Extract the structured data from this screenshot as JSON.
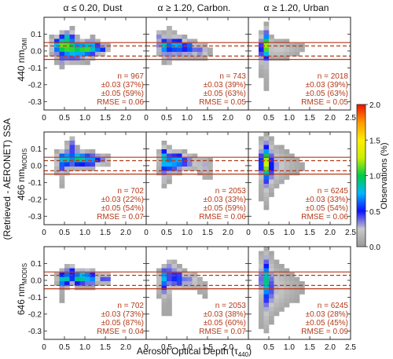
{
  "figure": {
    "col_titles": [
      "α ≤ 0.20, Dust",
      "α ≥ 1.20, Carbon.",
      "α ≥ 1.20, Urban"
    ],
    "row_labels": [
      {
        "main": "440 nm",
        "sub": "OMI"
      },
      {
        "main": "466 nm",
        "sub": "MODIS"
      },
      {
        "main": "646 nm",
        "sub": "MODIS"
      }
    ],
    "shared_ylabel": "(Retrieved - AERONET) SSA",
    "shared_xlabel": "Aerosol Optical Depth (τ",
    "shared_xlabel_sub": "440",
    "shared_xlabel_tail": ")",
    "colorbar_label": "Observations (%)",
    "colorbar_ticks": [
      "0.0",
      "0.5",
      "1.0",
      "1.5",
      "2.0"
    ],
    "colorbar_range": [
      0,
      2
    ],
    "colorbar_colors": [
      "#9a9a9a",
      "#c8c8c8",
      "#1010ff",
      "#00b7ff",
      "#00cc44",
      "#ccee00",
      "#ffee00",
      "#ff9900",
      "#ee1100"
    ],
    "reference_line_color": "#b33a1a",
    "stats_color": "#b33a1a",
    "y_ticks": [
      "-0.3",
      "-0.2",
      "-0.1",
      "0.0",
      "0.1"
    ],
    "x_ticks_cols12": [
      "0",
      "0.5",
      "1.0",
      "1.5",
      "2.0"
    ],
    "x_ticks_col3": [
      "0",
      "0.5",
      "1.0",
      "1.5",
      "2.0",
      "2.5"
    ]
  },
  "chart_data": [
    {
      "type": "heatmap",
      "row": 0,
      "col": 0,
      "xlim": [
        0,
        2.5
      ],
      "ylim": [
        -0.35,
        0.2
      ],
      "reference_lines": {
        "solid": [
          0.05,
          -0.05
        ],
        "dashed": [
          0.03,
          -0.03
        ]
      },
      "stats": [
        "n =   967",
        "±0.03 (37%)",
        "±0.05 (59%)",
        "RMSE = 0.06"
      ],
      "density": [
        [
          0.4,
          0.03,
          0.13,
          0.035,
          0.95
        ],
        [
          0.65,
          0.02,
          0.13,
          0.035,
          0.85
        ],
        [
          0.55,
          0.085,
          0.07,
          0.02,
          0.6
        ],
        [
          0.95,
          0.01,
          0.13,
          0.025,
          0.75
        ],
        [
          1.15,
          0.02,
          0.12,
          0.03,
          0.7
        ],
        [
          1.4,
          0.01,
          0.1,
          0.02,
          0.55
        ],
        [
          0.45,
          -0.06,
          0.08,
          0.02,
          0.3
        ],
        [
          0.8,
          -0.03,
          0.2,
          0.03,
          0.3
        ],
        [
          0.7,
          0.09,
          0.05,
          0.03,
          0.2
        ]
      ]
    },
    {
      "type": "heatmap",
      "row": 0,
      "col": 1,
      "xlim": [
        0,
        2.5
      ],
      "ylim": [
        -0.35,
        0.2
      ],
      "reference_lines": {
        "solid": [
          0.05,
          -0.05
        ],
        "dashed": [
          0.03,
          -0.03
        ]
      },
      "stats": [
        "n =   743",
        "±0.03 (39%)",
        "±0.05 (63%)",
        "RMSE = 0.05"
      ],
      "density": [
        [
          0.45,
          0.03,
          0.1,
          0.03,
          0.8
        ],
        [
          0.75,
          0.04,
          0.1,
          0.03,
          0.7
        ],
        [
          1.05,
          0.03,
          0.08,
          0.025,
          0.5
        ],
        [
          0.35,
          0.09,
          0.06,
          0.02,
          0.35
        ],
        [
          0.9,
          0.0,
          0.3,
          0.03,
          0.3
        ],
        [
          1.35,
          0.0,
          0.12,
          0.025,
          0.3
        ],
        [
          0.55,
          -0.05,
          0.08,
          0.02,
          0.25
        ],
        [
          0.6,
          0.12,
          0.06,
          0.02,
          0.2
        ]
      ]
    },
    {
      "type": "heatmap",
      "row": 0,
      "col": 2,
      "xlim": [
        0,
        2.5
      ],
      "ylim": [
        -0.35,
        0.2
      ],
      "reference_lines": {
        "solid": [
          0.05,
          -0.05
        ],
        "dashed": [
          0.03,
          -0.03
        ]
      },
      "stats": [
        "n =  2018",
        "±0.03 (39%)",
        "±0.05 (63%)",
        "RMSE = 0.05"
      ],
      "density": [
        [
          0.38,
          0.01,
          0.045,
          0.05,
          1.2
        ],
        [
          0.45,
          0.04,
          0.06,
          0.04,
          0.6
        ],
        [
          0.7,
          0.01,
          0.2,
          0.04,
          0.22
        ],
        [
          1.1,
          0.01,
          0.25,
          0.03,
          0.12
        ],
        [
          0.38,
          -0.1,
          0.05,
          0.07,
          0.2
        ],
        [
          0.4,
          0.1,
          0.05,
          0.04,
          0.25
        ],
        [
          0.4,
          -0.22,
          0.04,
          0.05,
          0.08
        ]
      ]
    },
    {
      "type": "heatmap",
      "row": 1,
      "col": 0,
      "xlim": [
        0,
        2.5
      ],
      "ylim": [
        -0.35,
        0.2
      ],
      "reference_lines": {
        "solid": [
          0.05,
          -0.05
        ],
        "dashed": [
          0.03,
          -0.03
        ]
      },
      "stats": [
        "n =   702",
        "±0.03 (22%)",
        "±0.05 (54%)",
        "RMSE = 0.07"
      ],
      "density": [
        [
          0.5,
          0.04,
          0.12,
          0.03,
          0.85
        ],
        [
          0.85,
          0.04,
          0.13,
          0.03,
          0.95
        ],
        [
          1.15,
          0.03,
          0.12,
          0.025,
          0.6
        ],
        [
          0.65,
          0.12,
          0.05,
          0.03,
          0.55
        ],
        [
          1.5,
          0.03,
          0.05,
          0.02,
          0.55
        ],
        [
          0.45,
          -0.02,
          0.1,
          0.03,
          0.3
        ],
        [
          0.4,
          -0.1,
          0.04,
          0.04,
          0.15
        ],
        [
          1.3,
          0.04,
          0.08,
          0.02,
          0.3
        ]
      ]
    },
    {
      "type": "heatmap",
      "row": 1,
      "col": 1,
      "xlim": [
        0,
        2.5
      ],
      "ylim": [
        -0.35,
        0.2
      ],
      "reference_lines": {
        "solid": [
          0.05,
          -0.05
        ],
        "dashed": [
          0.03,
          -0.03
        ]
      },
      "stats": [
        "n =  2053",
        "±0.03 (33%)",
        "±0.05 (59%)",
        "RMSE = 0.06"
      ],
      "density": [
        [
          0.45,
          0.05,
          0.08,
          0.04,
          0.75
        ],
        [
          0.75,
          0.03,
          0.1,
          0.035,
          0.7
        ],
        [
          0.55,
          0.0,
          0.1,
          0.03,
          0.5
        ],
        [
          1.0,
          0.02,
          0.15,
          0.03,
          0.4
        ],
        [
          1.4,
          0.0,
          0.12,
          0.03,
          0.3
        ],
        [
          0.45,
          -0.06,
          0.08,
          0.04,
          0.25
        ],
        [
          1.5,
          -0.06,
          0.06,
          0.03,
          0.15
        ]
      ]
    },
    {
      "type": "heatmap",
      "row": 1,
      "col": 2,
      "xlim": [
        0,
        2.5
      ],
      "ylim": [
        -0.35,
        0.2
      ],
      "reference_lines": {
        "solid": [
          0.05,
          -0.05
        ],
        "dashed": [
          0.03,
          -0.03
        ]
      },
      "stats": [
        "n =  6245",
        "±0.03 (33%)",
        "±0.05 (54%)",
        "RMSE = 0.06"
      ],
      "density": [
        [
          0.38,
          0.02,
          0.04,
          0.045,
          1.4
        ],
        [
          0.45,
          0.0,
          0.08,
          0.08,
          0.6
        ],
        [
          0.6,
          0.0,
          0.2,
          0.08,
          0.25
        ],
        [
          1.0,
          0.0,
          0.3,
          0.05,
          0.12
        ],
        [
          0.4,
          -0.18,
          0.08,
          0.06,
          0.12
        ],
        [
          0.4,
          0.12,
          0.08,
          0.04,
          0.15
        ]
      ]
    },
    {
      "type": "heatmap",
      "row": 2,
      "col": 0,
      "xlim": [
        0,
        2.5
      ],
      "ylim": [
        -0.35,
        0.2
      ],
      "reference_lines": {
        "solid": [
          0.05,
          -0.05
        ],
        "dashed": [
          0.03,
          -0.03
        ]
      },
      "stats": [
        "n =   702",
        "±0.03 (73%)",
        "±0.05 (87%)",
        "RMSE = 0.04"
      ],
      "density": [
        [
          0.5,
          0.01,
          0.1,
          0.025,
          0.95
        ],
        [
          0.85,
          0.01,
          0.12,
          0.025,
          0.95
        ],
        [
          1.15,
          0.01,
          0.1,
          0.025,
          0.7
        ],
        [
          1.5,
          0.01,
          0.08,
          0.02,
          0.55
        ],
        [
          0.65,
          0.06,
          0.07,
          0.02,
          0.5
        ],
        [
          0.45,
          -0.03,
          0.06,
          0.02,
          0.3
        ],
        [
          1.0,
          0.04,
          0.1,
          0.02,
          0.3
        ],
        [
          0.4,
          -0.1,
          0.04,
          0.03,
          0.12
        ]
      ]
    },
    {
      "type": "heatmap",
      "row": 2,
      "col": 1,
      "xlim": [
        0,
        2.5
      ],
      "ylim": [
        -0.35,
        0.2
      ],
      "reference_lines": {
        "solid": [
          0.05,
          -0.05
        ],
        "dashed": [
          0.03,
          -0.03
        ]
      },
      "stats": [
        "n =  2053",
        "±0.03 (38%)",
        "±0.05 (60%)",
        "RMSE = 0.07"
      ],
      "density": [
        [
          0.45,
          0.02,
          0.08,
          0.035,
          0.7
        ],
        [
          0.75,
          0.01,
          0.1,
          0.035,
          0.6
        ],
        [
          1.05,
          0.0,
          0.15,
          0.03,
          0.35
        ],
        [
          0.45,
          -0.05,
          0.1,
          0.04,
          0.35
        ],
        [
          0.6,
          0.08,
          0.08,
          0.03,
          0.3
        ],
        [
          0.5,
          -0.18,
          0.06,
          0.05,
          0.12
        ],
        [
          1.4,
          -0.05,
          0.12,
          0.04,
          0.12
        ]
      ]
    },
    {
      "type": "heatmap",
      "row": 2,
      "col": 2,
      "xlim": [
        0,
        2.5
      ],
      "ylim": [
        -0.35,
        0.2
      ],
      "reference_lines": {
        "solid": [
          0.05,
          -0.05
        ],
        "dashed": [
          0.03,
          -0.03
        ]
      },
      "stats": [
        "n =  6245",
        "±0.03 (28%)",
        "±0.05 (45%)",
        "RMSE = 0.09"
      ],
      "density": [
        [
          0.38,
          0.01,
          0.035,
          0.05,
          1.3
        ],
        [
          0.45,
          -0.03,
          0.08,
          0.1,
          0.45
        ],
        [
          0.6,
          -0.05,
          0.2,
          0.1,
          0.22
        ],
        [
          1.0,
          -0.05,
          0.3,
          0.07,
          0.12
        ],
        [
          0.4,
          -0.25,
          0.08,
          0.06,
          0.12
        ],
        [
          0.4,
          0.12,
          0.08,
          0.05,
          0.15
        ]
      ]
    }
  ]
}
